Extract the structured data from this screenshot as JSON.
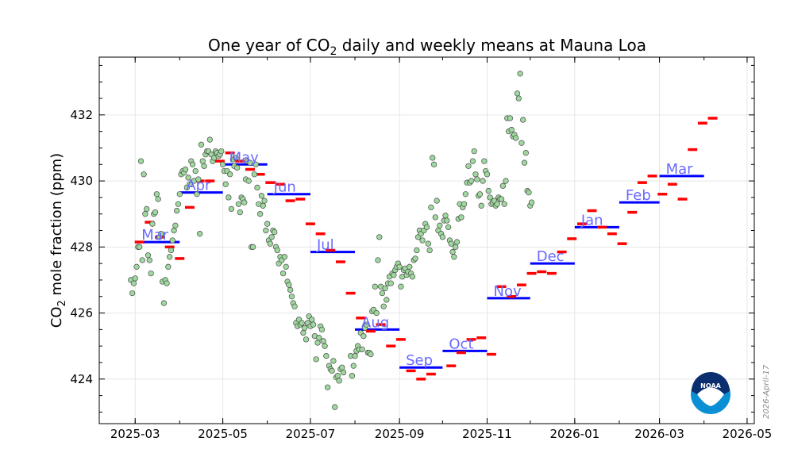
{
  "chart_data": {
    "type": "scatter",
    "title": "One year of CO₂ daily and weekly means at Mauna Loa",
    "title_main": "One year of CO",
    "title_sub": "2",
    "title_rest": " daily and weekly means at Mauna Loa",
    "ylabel": "CO₂ mole fraction (ppm)",
    "ylabel_main": "CO",
    "ylabel_sub": "2",
    "ylabel_rest": " mole fraction (ppm)",
    "xlabel": "",
    "xlim": [
      "2025-02-04",
      "2026-05-06"
    ],
    "ylim": [
      422.65,
      433.75
    ],
    "grid": true,
    "x_ticks": [
      "2025-03",
      "2025-05",
      "2025-07",
      "2025-09",
      "2025-11",
      "2026-01",
      "2026-03",
      "2026-05"
    ],
    "y_ticks": [
      424,
      426,
      428,
      430,
      432
    ],
    "date_stamp": "2026-April-17",
    "logo_text": "NOAA",
    "colors": {
      "daily_fill": "#9ed89e",
      "daily_edge": "#4a4a4a",
      "weekly": "#ff0000",
      "monthly": "#0000ff",
      "month_label": "#6a6aff",
      "grid": "#e6e6e6"
    },
    "monthly_means": [
      {
        "month": "2025-03",
        "label": "Mar",
        "value": 428.15
      },
      {
        "month": "2025-04",
        "label": "Apr",
        "value": 429.65
      },
      {
        "month": "2025-05",
        "label": "May",
        "value": 430.5
      },
      {
        "month": "2025-06",
        "label": "Jun",
        "value": 429.6
      },
      {
        "month": "2025-07",
        "label": "Jul",
        "value": 427.85
      },
      {
        "month": "2025-08",
        "label": "Aug",
        "value": 425.5
      },
      {
        "month": "2025-09",
        "label": "Sep",
        "value": 424.35
      },
      {
        "month": "2025-10",
        "label": "Oct",
        "value": 424.85
      },
      {
        "month": "2025-11",
        "label": "Nov",
        "value": 426.45
      },
      {
        "month": "2025-12",
        "label": "Dec",
        "value": 427.5
      },
      {
        "month": "2026-01",
        "label": "Jan",
        "value": 428.6
      },
      {
        "month": "2026-02",
        "label": "Feb",
        "value": 429.35
      },
      {
        "month": "2026-03",
        "label": "Mar",
        "value": 430.15
      }
    ],
    "weekly_means": {
      "dates": [
        "2025-03-04",
        "2025-03-11",
        "2025-03-18",
        "2025-03-25",
        "2025-04-01",
        "2025-04-08",
        "2025-04-15",
        "2025-04-22",
        "2025-04-29",
        "2025-05-06",
        "2025-05-13",
        "2025-05-20",
        "2025-05-27",
        "2025-06-03",
        "2025-06-10",
        "2025-06-17",
        "2025-06-24",
        "2025-07-01",
        "2025-07-08",
        "2025-07-15",
        "2025-07-22",
        "2025-07-29",
        "2025-08-05",
        "2025-08-12",
        "2025-08-19",
        "2025-08-26",
        "2025-09-02",
        "2025-09-09",
        "2025-09-16",
        "2025-09-23",
        "2025-10-07",
        "2025-10-14",
        "2025-10-21",
        "2025-10-28",
        "2025-11-04",
        "2025-11-11",
        "2025-11-18",
        "2025-11-25",
        "2025-12-02",
        "2025-12-09",
        "2025-12-16",
        "2025-12-23",
        "2025-12-30",
        "2026-01-06",
        "2026-01-13",
        "2026-01-20",
        "2026-01-27",
        "2026-02-03",
        "2026-02-10",
        "2026-02-17",
        "2026-02-24",
        "2026-03-03",
        "2026-03-10",
        "2026-03-17",
        "2026-03-24",
        "2026-03-31",
        "2026-04-07"
      ],
      "values": [
        428.15,
        428.75,
        428.3,
        428.0,
        427.65,
        429.2,
        430.0,
        430.0,
        430.6,
        430.85,
        430.6,
        430.35,
        430.2,
        429.95,
        429.9,
        429.4,
        429.45,
        428.7,
        428.4,
        427.9,
        427.55,
        426.6,
        425.85,
        425.45,
        425.65,
        425.0,
        425.2,
        424.25,
        424.0,
        424.15,
        424.4,
        424.8,
        425.2,
        425.25,
        424.75,
        426.8,
        426.5,
        426.85,
        427.2,
        427.25,
        427.2,
        427.85,
        428.25,
        428.7,
        429.1,
        428.6,
        428.4,
        428.1,
        429.05,
        429.95,
        430.15,
        429.6,
        429.9,
        429.45,
        430.95,
        431.75,
        431.9
      ]
    },
    "daily": {
      "start": "2025-02-26",
      "values": [
        427.0,
        426.6,
        426.9,
        427.05,
        427.4,
        428.0,
        428.0,
        430.6,
        427.6,
        430.2,
        429.0,
        429.15,
        427.75,
        427.6,
        427.2,
        428.7,
        429.0,
        429.05,
        429.6,
        429.45,
        428.3,
        428.4,
        426.95,
        426.3,
        427.0,
        426.9,
        427.4,
        427.7,
        427.9,
        428.2,
        428.5,
        428.65,
        429.1,
        429.3,
        429.6,
        430.2,
        430.3,
        430.25,
        430.35,
        429.8,
        430.1,
        429.9,
        430.6,
        430.5,
        430.0,
        430.3,
        429.6,
        430.05,
        428.4,
        431.1,
        430.6,
        430.45,
        430.8,
        430.9,
        430.9,
        431.25,
        430.8,
        430.6,
        430.7,
        430.9,
        430.85,
        430.75,
        430.8,
        430.9,
        430.5,
        430.3,
        429.9,
        430.3,
        429.5,
        430.2,
        429.15,
        430.65,
        430.45,
        430.7,
        430.4,
        429.3,
        429.05,
        429.5,
        429.45,
        429.35,
        430.05,
        430.6,
        430.0,
        430.55,
        428.0,
        428.0,
        430.2,
        430.5,
        429.8,
        429.3,
        429.0,
        429.55,
        429.25,
        429.4,
        428.5,
        428.7,
        428.2,
        428.1,
        428.3,
        428.5,
        428.45,
        428.0,
        427.9,
        427.5,
        427.7,
        427.6,
        427.2,
        427.7,
        427.4,
        426.95,
        426.85,
        426.7,
        426.5,
        426.3,
        426.2,
        425.7,
        425.6,
        425.8,
        425.65,
        425.7,
        425.4,
        425.55,
        425.2,
        425.7,
        425.9,
        425.6,
        425.8,
        425.65,
        425.3,
        424.6,
        425.1,
        425.25,
        425.6,
        425.5,
        425.15,
        425.0,
        424.7,
        423.75,
        424.4,
        424.3,
        424.25,
        424.55,
        423.15,
        424.05,
        424.1,
        423.95,
        424.3,
        424.35,
        424.2,
        null,
        null,
        null,
        null,
        424.7,
        424.1,
        424.4,
        424.7,
        424.85,
        425.0,
        424.9,
        425.4,
        424.9,
        425.3,
        425.55,
        425.65,
        424.8,
        424.8,
        424.75,
        426.05,
        426.1,
        426.8,
        426.0,
        427.6,
        428.3,
        426.8,
        426.6,
        426.2,
        426.75,
        426.4,
        426.9,
        427.1,
        426.9,
        427.2,
        427.15,
        427.3,
        427.4,
        427.5,
        427.4,
        426.8,
        427.1,
        427.3,
        427.35,
        427.15,
        427.25,
        427.4,
        427.2,
        427.1,
        427.6,
        427.65,
        427.9,
        428.3,
        428.5,
        428.4,
        428.2,
        428.5,
        428.7,
        428.6,
        428.1,
        427.9,
        429.2,
        430.7,
        430.5,
        428.9,
        429.4,
        428.5,
        428.65,
        428.4,
        428.3,
        428.8,
        428.95,
        428.8,
        428.6,
        428.2,
        428.1,
        427.85,
        427.7,
        428.0,
        428.15,
        428.85,
        429.3,
        428.9,
        429.2,
        429.3,
        429.6,
        429.95,
        430.45,
        429.95,
        430.0,
        430.6,
        430.9,
        430.2,
        430.05,
        429.55,
        429.6,
        429.25,
        430.0,
        430.6,
        430.3,
        430.2,
        429.7,
        429.5,
        429.3,
        429.35,
        429.4,
        429.25,
        429.3,
        429.5,
        429.45,
        429.45,
        429.85,
        429.3,
        430.0,
        431.9,
        431.5,
        431.9,
        431.55,
        431.35,
        431.4,
        431.3,
        432.65,
        432.5,
        433.25,
        431.15,
        431.85,
        430.55,
        430.85,
        429.7,
        429.65,
        429.25,
        429.35
      ]
    }
  }
}
